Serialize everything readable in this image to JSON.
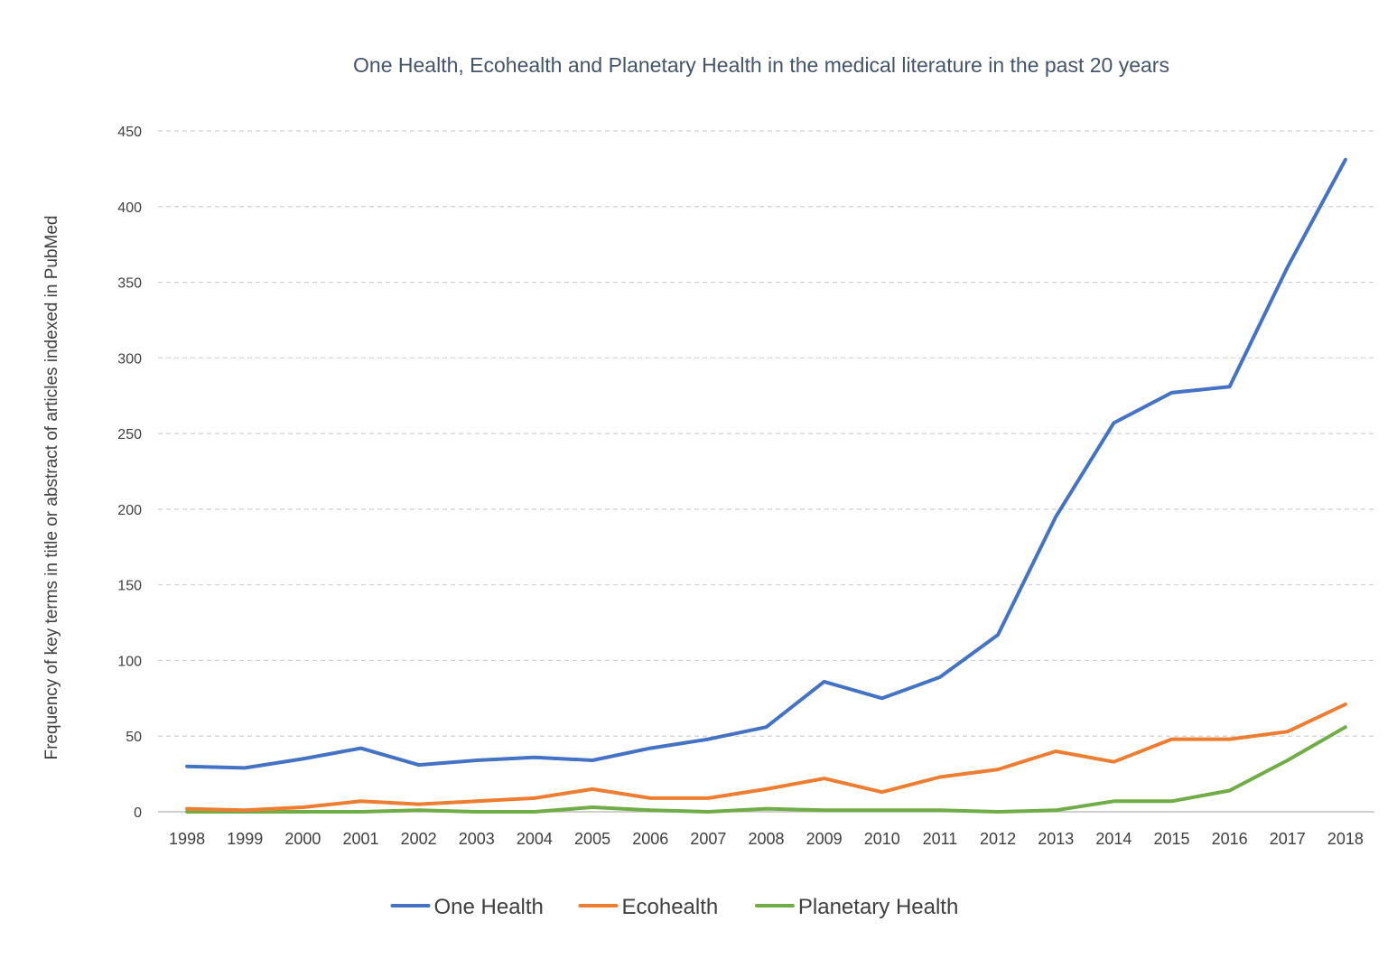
{
  "chart_data": {
    "type": "line",
    "title": "One Health, Ecohealth and Planetary Health in the medical literature in the past 20 years",
    "xlabel": "",
    "ylabel": "Frequency of key terms  in title or abstract of articles indexed in PubMed",
    "ylim": [
      0,
      450
    ],
    "yticks": [
      0,
      50,
      100,
      150,
      200,
      250,
      300,
      350,
      400,
      450
    ],
    "grid": "horizontal dashed",
    "legend_position": "bottom",
    "categories": [
      "1998",
      "1999",
      "2000",
      "2001",
      "2002",
      "2003",
      "2004",
      "2005",
      "2006",
      "2007",
      "2008",
      "2009",
      "2010",
      "2011",
      "2012",
      "2013",
      "2014",
      "2015",
      "2016",
      "2017",
      "2018"
    ],
    "series": [
      {
        "name": "One Health",
        "color": "#4472c4",
        "values": [
          30,
          29,
          35,
          42,
          31,
          34,
          36,
          34,
          42,
          48,
          56,
          86,
          75,
          89,
          117,
          195,
          257,
          277,
          281,
          360,
          431
        ]
      },
      {
        "name": "Ecohealth",
        "color": "#ed7d31",
        "values": [
          2,
          1,
          3,
          7,
          5,
          7,
          9,
          15,
          9,
          9,
          15,
          22,
          13,
          23,
          28,
          40,
          33,
          48,
          48,
          53,
          71
        ]
      },
      {
        "name": "Planetary Health",
        "color": "#70ad47",
        "values": [
          0,
          0,
          0,
          0,
          1,
          0,
          0,
          3,
          1,
          0,
          2,
          1,
          1,
          1,
          0,
          1,
          7,
          7,
          14,
          34,
          56
        ]
      }
    ]
  }
}
